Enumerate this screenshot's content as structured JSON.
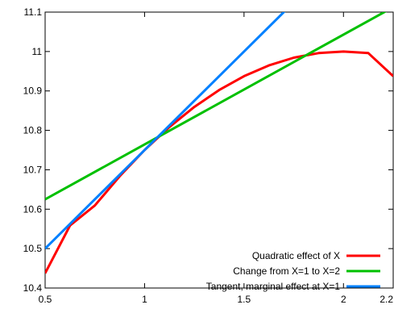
{
  "chart_data": {
    "type": "line",
    "xlim": [
      0.5,
      2.25
    ],
    "ylim": [
      10.4,
      11.1
    ],
    "x_ticks": [
      0.5,
      1,
      1.5,
      2,
      2.25
    ],
    "x_tick_labels": [
      "0.5",
      "1",
      "1.5",
      "2",
      "2.2"
    ],
    "y_ticks": [
      10.4,
      10.5,
      10.6,
      10.7,
      10.8,
      10.9,
      11,
      11.1
    ],
    "y_tick_labels": [
      "10.4",
      "10.5",
      "10.6",
      "10.7",
      "10.8",
      "10.9",
      "11",
      "11.1"
    ],
    "grid": false,
    "legend_position": "bottom-right",
    "series": [
      {
        "name": "Quadratic effect of X",
        "color": "#ff0000",
        "x": [
          0.5,
          0.625,
          0.75,
          0.875,
          1.0,
          1.125,
          1.25,
          1.375,
          1.5,
          1.625,
          1.75,
          1.875,
          2.0,
          2.125,
          2.25
        ],
        "y": [
          10.4375,
          10.5586,
          10.6094,
          10.6836,
          10.75,
          10.8086,
          10.8594,
          10.9023,
          10.9375,
          10.9648,
          10.9844,
          10.9961,
          11.0,
          10.9961,
          10.9375
        ]
      },
      {
        "name": "Change from X=1 to X=2",
        "color": "#00c000",
        "x": [
          0.5,
          2.25
        ],
        "y": [
          10.625,
          11.1125
        ]
      },
      {
        "name": "Tangent, marginal effect at X=1",
        "color": "#0080ff",
        "x": [
          0.5,
          1.72
        ],
        "y": [
          10.5,
          11.11
        ]
      }
    ]
  }
}
